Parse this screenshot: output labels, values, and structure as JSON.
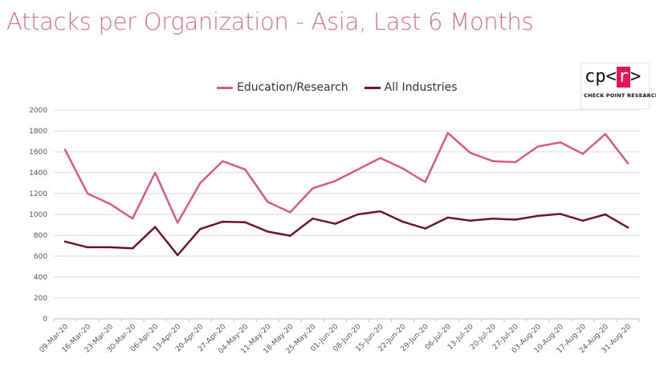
{
  "page": {
    "title": "Attacks per Organization - Asia, Last 6 Months"
  },
  "logo": {
    "mark_left": "cp<",
    "mark_r": "r",
    "mark_right": ">",
    "subtitle": "CHECK POINT RESEARCH",
    "accent_color": "#e2145b"
  },
  "chart_data": {
    "type": "line",
    "title": "Attacks per Organization - Asia, Last 6 Months",
    "xlabel": "",
    "ylabel": "",
    "ylim": [
      0,
      2000
    ],
    "y_ticks": [
      0,
      200,
      400,
      600,
      800,
      1000,
      1200,
      1400,
      1600,
      1800,
      2000
    ],
    "grid": true,
    "legend_position": "top",
    "categories": [
      "09-Mar-20",
      "16-Mar-20",
      "23-Mar-20",
      "30-Mar-20",
      "06-Apr-20",
      "13-Apr-20",
      "20-Apr-20",
      "27-Apr-20",
      "04-May-20",
      "11-May-20",
      "18-May-20",
      "25-May-20",
      "01-Jun-20",
      "08-Jun-20",
      "15-Jun-20",
      "22-Jun-20",
      "29-Jun-20",
      "06-Jul-20",
      "13-Jul-20",
      "20-Jul-20",
      "27-Jul-20",
      "03-Aug-20",
      "10-Aug-20",
      "17-Aug-20",
      "24-Aug-20",
      "31-Aug-20"
    ],
    "series": [
      {
        "name": "Education/Research",
        "color": "#d9588a",
        "values": [
          1620,
          1200,
          1100,
          960,
          1400,
          920,
          1300,
          1510,
          1430,
          1120,
          1020,
          1250,
          1320,
          1430,
          1540,
          1440,
          1310,
          1780,
          1590,
          1510,
          1500,
          1650,
          1690,
          1580,
          1770,
          1490
        ]
      },
      {
        "name": "All Industries",
        "color": "#6b1535",
        "values": [
          740,
          685,
          685,
          675,
          880,
          610,
          860,
          930,
          925,
          835,
          795,
          960,
          910,
          1000,
          1030,
          930,
          865,
          970,
          940,
          960,
          950,
          985,
          1005,
          940,
          1000,
          875
        ]
      }
    ]
  }
}
